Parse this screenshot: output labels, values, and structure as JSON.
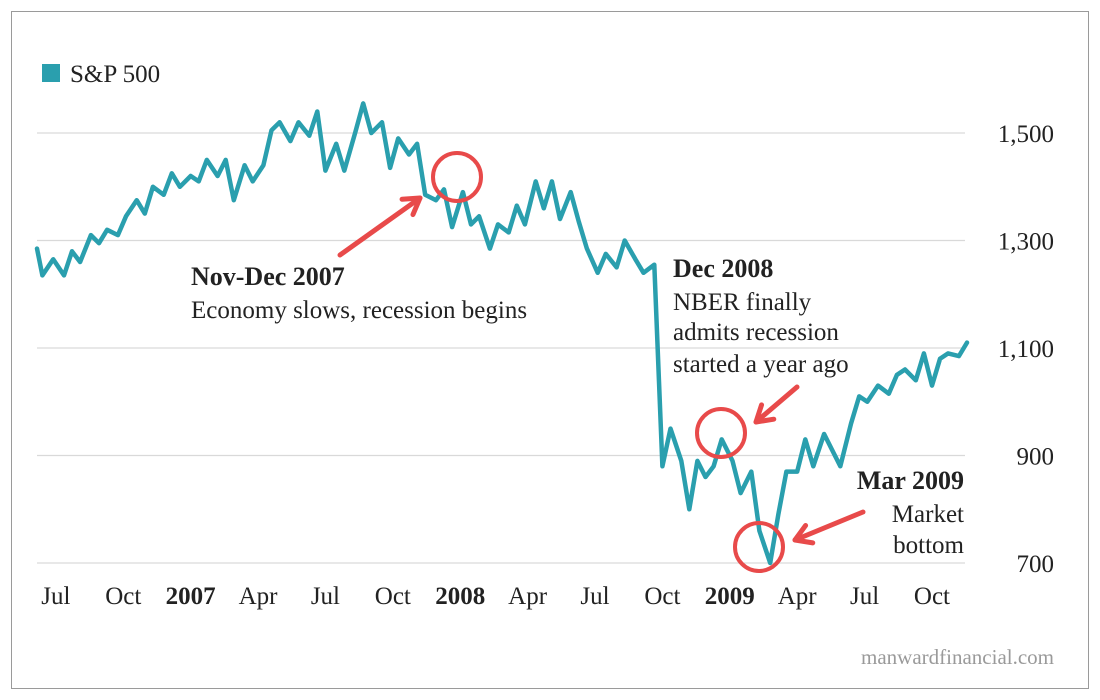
{
  "chart_data": {
    "type": "line",
    "title": "",
    "xlabel": "",
    "ylabel": "",
    "ylim": [
      680,
      1600
    ],
    "yticks": [
      700,
      900,
      1100,
      1300,
      1500
    ],
    "ytick_labels": [
      "700",
      "900",
      "1,100",
      "1,300",
      "1,500"
    ],
    "grid": true,
    "legend": {
      "position": "top-left",
      "entries": [
        "S&P 500"
      ]
    },
    "xticks": [
      {
        "label": "Jul",
        "t": 2006.5,
        "bold": false
      },
      {
        "label": "Oct",
        "t": 2006.75,
        "bold": false
      },
      {
        "label": "2007",
        "t": 2007.0,
        "bold": true
      },
      {
        "label": "Apr",
        "t": 2007.25,
        "bold": false
      },
      {
        "label": "Jul",
        "t": 2007.5,
        "bold": false
      },
      {
        "label": "Oct",
        "t": 2007.75,
        "bold": false
      },
      {
        "label": "2008",
        "t": 2008.0,
        "bold": true
      },
      {
        "label": "Apr",
        "t": 2008.25,
        "bold": false
      },
      {
        "label": "Jul",
        "t": 2008.5,
        "bold": false
      },
      {
        "label": "Oct",
        "t": 2008.75,
        "bold": false
      },
      {
        "label": "2009",
        "t": 2009.0,
        "bold": true
      },
      {
        "label": "Apr",
        "t": 2009.25,
        "bold": false
      },
      {
        "label": "Jul",
        "t": 2009.5,
        "bold": false
      },
      {
        "label": "Oct",
        "t": 2009.75,
        "bold": false
      }
    ],
    "series": [
      {
        "name": "S&P 500",
        "color": "#2a9fae",
        "x": [
          2006.43,
          2006.45,
          2006.49,
          2006.53,
          2006.56,
          2006.59,
          2006.63,
          2006.66,
          2006.69,
          2006.73,
          2006.76,
          2006.8,
          2006.83,
          2006.86,
          2006.9,
          2006.93,
          2006.96,
          2007.0,
          2007.03,
          2007.06,
          2007.1,
          2007.13,
          2007.16,
          2007.2,
          2007.23,
          2007.27,
          2007.3,
          2007.33,
          2007.37,
          2007.4,
          2007.44,
          2007.47,
          2007.5,
          2007.54,
          2007.57,
          2007.61,
          2007.64,
          2007.67,
          2007.71,
          2007.74,
          2007.77,
          2007.81,
          2007.84,
          2007.87,
          2007.91,
          2007.94,
          2007.97,
          2008.01,
          2008.04,
          2008.07,
          2008.11,
          2008.14,
          2008.18,
          2008.21,
          2008.24,
          2008.28,
          2008.31,
          2008.34,
          2008.37,
          2008.41,
          2008.44,
          2008.47,
          2008.51,
          2008.54,
          2008.58,
          2008.61,
          2008.65,
          2008.68,
          2008.72,
          2008.75,
          2008.78,
          2008.82,
          2008.85,
          2008.88,
          2008.91,
          2008.94,
          2008.97,
          2009.01,
          2009.04,
          2009.08,
          2009.11,
          2009.15,
          2009.18,
          2009.21,
          2009.25,
          2009.28,
          2009.31,
          2009.35,
          2009.38,
          2009.41,
          2009.45,
          2009.48,
          2009.51,
          2009.55,
          2009.59,
          2009.62,
          2009.65,
          2009.69,
          2009.72,
          2009.75,
          2009.78,
          2009.81,
          2009.85,
          2009.88
        ],
        "values": [
          1285,
          1235,
          1265,
          1235,
          1280,
          1260,
          1310,
          1295,
          1320,
          1310,
          1345,
          1375,
          1350,
          1400,
          1385,
          1425,
          1400,
          1420,
          1410,
          1450,
          1420,
          1450,
          1375,
          1440,
          1410,
          1440,
          1505,
          1520,
          1485,
          1520,
          1495,
          1540,
          1430,
          1480,
          1430,
          1500,
          1555,
          1500,
          1520,
          1435,
          1490,
          1460,
          1480,
          1385,
          1375,
          1395,
          1325,
          1390,
          1330,
          1345,
          1285,
          1330,
          1315,
          1365,
          1330,
          1410,
          1360,
          1410,
          1340,
          1390,
          1335,
          1285,
          1240,
          1275,
          1250,
          1300,
          1265,
          1240,
          1255,
          880,
          950,
          890,
          800,
          890,
          860,
          880,
          930,
          890,
          830,
          870,
          760,
          700,
          790,
          870,
          870,
          930,
          880,
          940,
          910,
          880,
          960,
          1010,
          1000,
          1030,
          1015,
          1050,
          1060,
          1040,
          1090,
          1030,
          1080,
          1090,
          1085,
          1110
        ]
      }
    ],
    "annotations": [
      {
        "title": "Nov-Dec 2007",
        "lines": [
          "Economy slows, recession begins"
        ]
      },
      {
        "title": "Dec 2008",
        "lines": [
          "NBER finally",
          "admits recession",
          "started a year ago"
        ]
      },
      {
        "title": "Mar 2009",
        "lines": [
          "Market",
          "bottom"
        ]
      }
    ],
    "source": "manwardfinancial.com",
    "accent_color": "#e84a4a",
    "grid_color": "#d9d9d9"
  }
}
